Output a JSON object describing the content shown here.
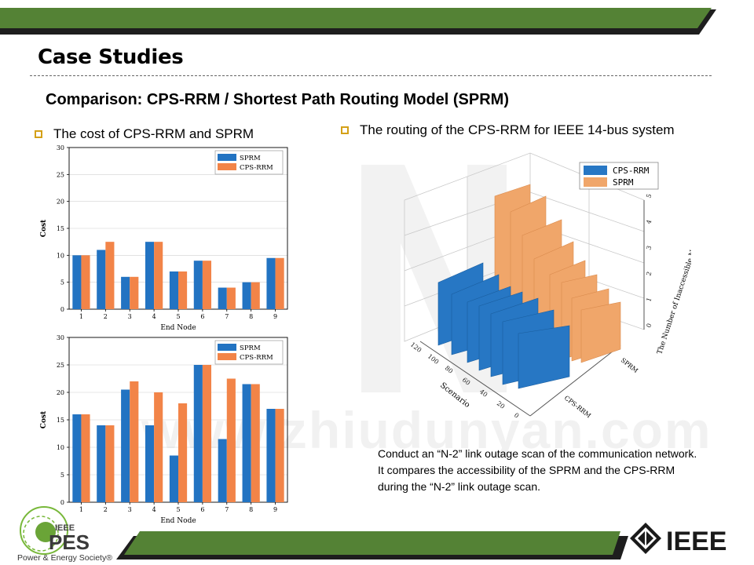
{
  "slide": {
    "title": "Case Studies",
    "subtitle": "Comparison: CPS-RRM / Shortest Path Routing Model (SPRM)",
    "bullet_left": "The cost of CPS-RRM and SPRM",
    "bullet_right": "The routing of the CPS-RRM for IEEE 14-bus system",
    "note_lines": [
      "Conduct an “N-2” link outage scan of the communication network.",
      "It compares the accessibility of the SPRM and the CPS-RRM",
      "during the “N-2” link outage scan."
    ],
    "watermark": "www.zhiudunyan.com"
  },
  "colors": {
    "band_green": "#548235",
    "band_dark": "#1e1e1e",
    "sprm": "#2273c2",
    "cps": "#f28448",
    "sprm_3d": "#2777c4",
    "cps_3d": "#f0a66a"
  },
  "logos": {
    "pes_top": "IEEE",
    "pes_main": "PES",
    "pes_caption": "Power & Energy Society®",
    "ieee_word": "IEEE"
  },
  "chart_data": [
    {
      "type": "bar",
      "categories": [
        "1",
        "2",
        "3",
        "4",
        "5",
        "6",
        "7",
        "8",
        "9"
      ],
      "series": [
        {
          "name": "SPRM",
          "values": [
            10,
            11,
            6,
            12.5,
            7,
            9,
            4,
            5,
            9.5
          ]
        },
        {
          "name": "CPS-RRM",
          "values": [
            10,
            12.5,
            6,
            12.5,
            7,
            9,
            4,
            5,
            9.5
          ]
        }
      ],
      "xlabel": "End Node",
      "ylabel": "Cost",
      "ylim": [
        0,
        30
      ],
      "yticks": [
        "0",
        "5",
        "10",
        "15",
        "20",
        "25",
        "30"
      ],
      "grid": true,
      "legend": "top-right"
    },
    {
      "type": "bar",
      "categories": [
        "1",
        "2",
        "3",
        "4",
        "5",
        "6",
        "7",
        "8",
        "9"
      ],
      "series": [
        {
          "name": "SPRM",
          "values": [
            16,
            14,
            20.5,
            14,
            8.5,
            25,
            11.5,
            21.5,
            17
          ]
        },
        {
          "name": "CPS-RRM",
          "values": [
            16,
            14,
            22,
            20,
            18,
            25,
            22.5,
            21.5,
            17
          ]
        }
      ],
      "xlabel": "End Node",
      "ylabel": "Cost",
      "ylim": [
        0,
        30
      ],
      "yticks": [
        "0",
        "5",
        "10",
        "15",
        "20",
        "25",
        "30"
      ],
      "grid": true,
      "legend": "top-right"
    },
    {
      "type": "bar",
      "title": "",
      "xlabel": "Scenario",
      "ylabel": "The Number of Inaccessible Nodes",
      "categories": [
        "CPS-RRM",
        "SPRM"
      ],
      "legend": [
        "CPS-RRM",
        "SPRM"
      ],
      "xticks": [
        "120",
        "100",
        "80",
        "60",
        "40",
        "20",
        "0"
      ],
      "zticks": [
        "0",
        "1",
        "2",
        "3",
        "4",
        "5"
      ]
    }
  ]
}
